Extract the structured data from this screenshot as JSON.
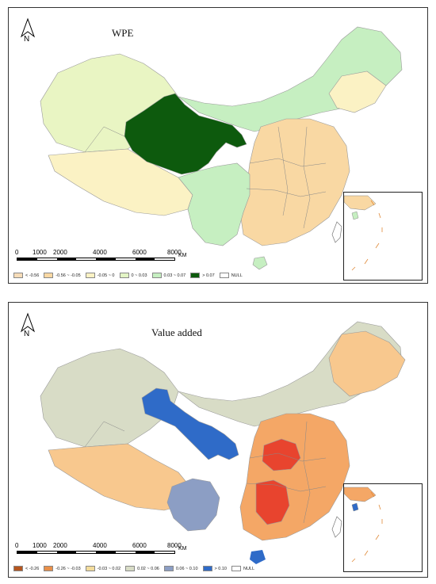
{
  "maps": [
    {
      "title": "WPE",
      "north_label": "N",
      "scale": {
        "ticks": [
          "0",
          "1000",
          "2000",
          "4000",
          "6000",
          "8000"
        ],
        "unit": "KM"
      },
      "legend": [
        {
          "label": "< -0.56",
          "color": "#f6dcb8"
        },
        {
          "label": "-0.56 ~ -0.05",
          "color": "#f9d8a3"
        },
        {
          "label": "-0.05 ~ 0",
          "color": "#fbf2c4"
        },
        {
          "label": "0 ~ 0.03",
          "color": "#e3f5c5"
        },
        {
          "label": "0.03 ~ 0.07",
          "color": "#c6efc1"
        },
        {
          "label": "> 0.07",
          "color": "#0d5a0d"
        },
        {
          "label": "NULL",
          "color": "#ffffff"
        }
      ],
      "region_colors": {
        "west": "#e9f5c3",
        "tibet": "#fbf2c4",
        "gansu_qinghai": "#0d5a0d",
        "inner_mongolia": "#c6efc1",
        "northeast": "#fbf2c4",
        "east": "#f9d8a3",
        "southwest": "#c6efc1",
        "southeast": "#f9d8a3",
        "central": "#fbf2c4"
      }
    },
    {
      "title": "Value added",
      "north_label": "N",
      "scale": {
        "ticks": [
          "0",
          "1000",
          "2000",
          "4000",
          "6000",
          "8000"
        ],
        "unit": "KM"
      },
      "legend": [
        {
          "label": "< -0.26",
          "color": "#b5561f"
        },
        {
          "label": "-0.26 ~ -0.03",
          "color": "#e8904a"
        },
        {
          "label": "-0.03 ~ 0.02",
          "color": "#f3dc9c"
        },
        {
          "label": "0.02 ~ 0.06",
          "color": "#d8dcc6"
        },
        {
          "label": "0.06 ~ 0.10",
          "color": "#8c9ec4"
        },
        {
          "label": "> 0.10",
          "color": "#2f6bc8"
        },
        {
          "label": "NULL",
          "color": "#ffffff"
        }
      ],
      "region_colors": {
        "west": "#d8dcc6",
        "tibet": "#f8c88e",
        "gansu_qinghai": "#2f6bc8",
        "inner_mongolia": "#d8dcc6",
        "northeast": "#f8c88e",
        "east": "#f4a766",
        "southwest": "#8c9ec4",
        "southeast": "#f8c88e",
        "central": "#e8442e"
      }
    }
  ]
}
